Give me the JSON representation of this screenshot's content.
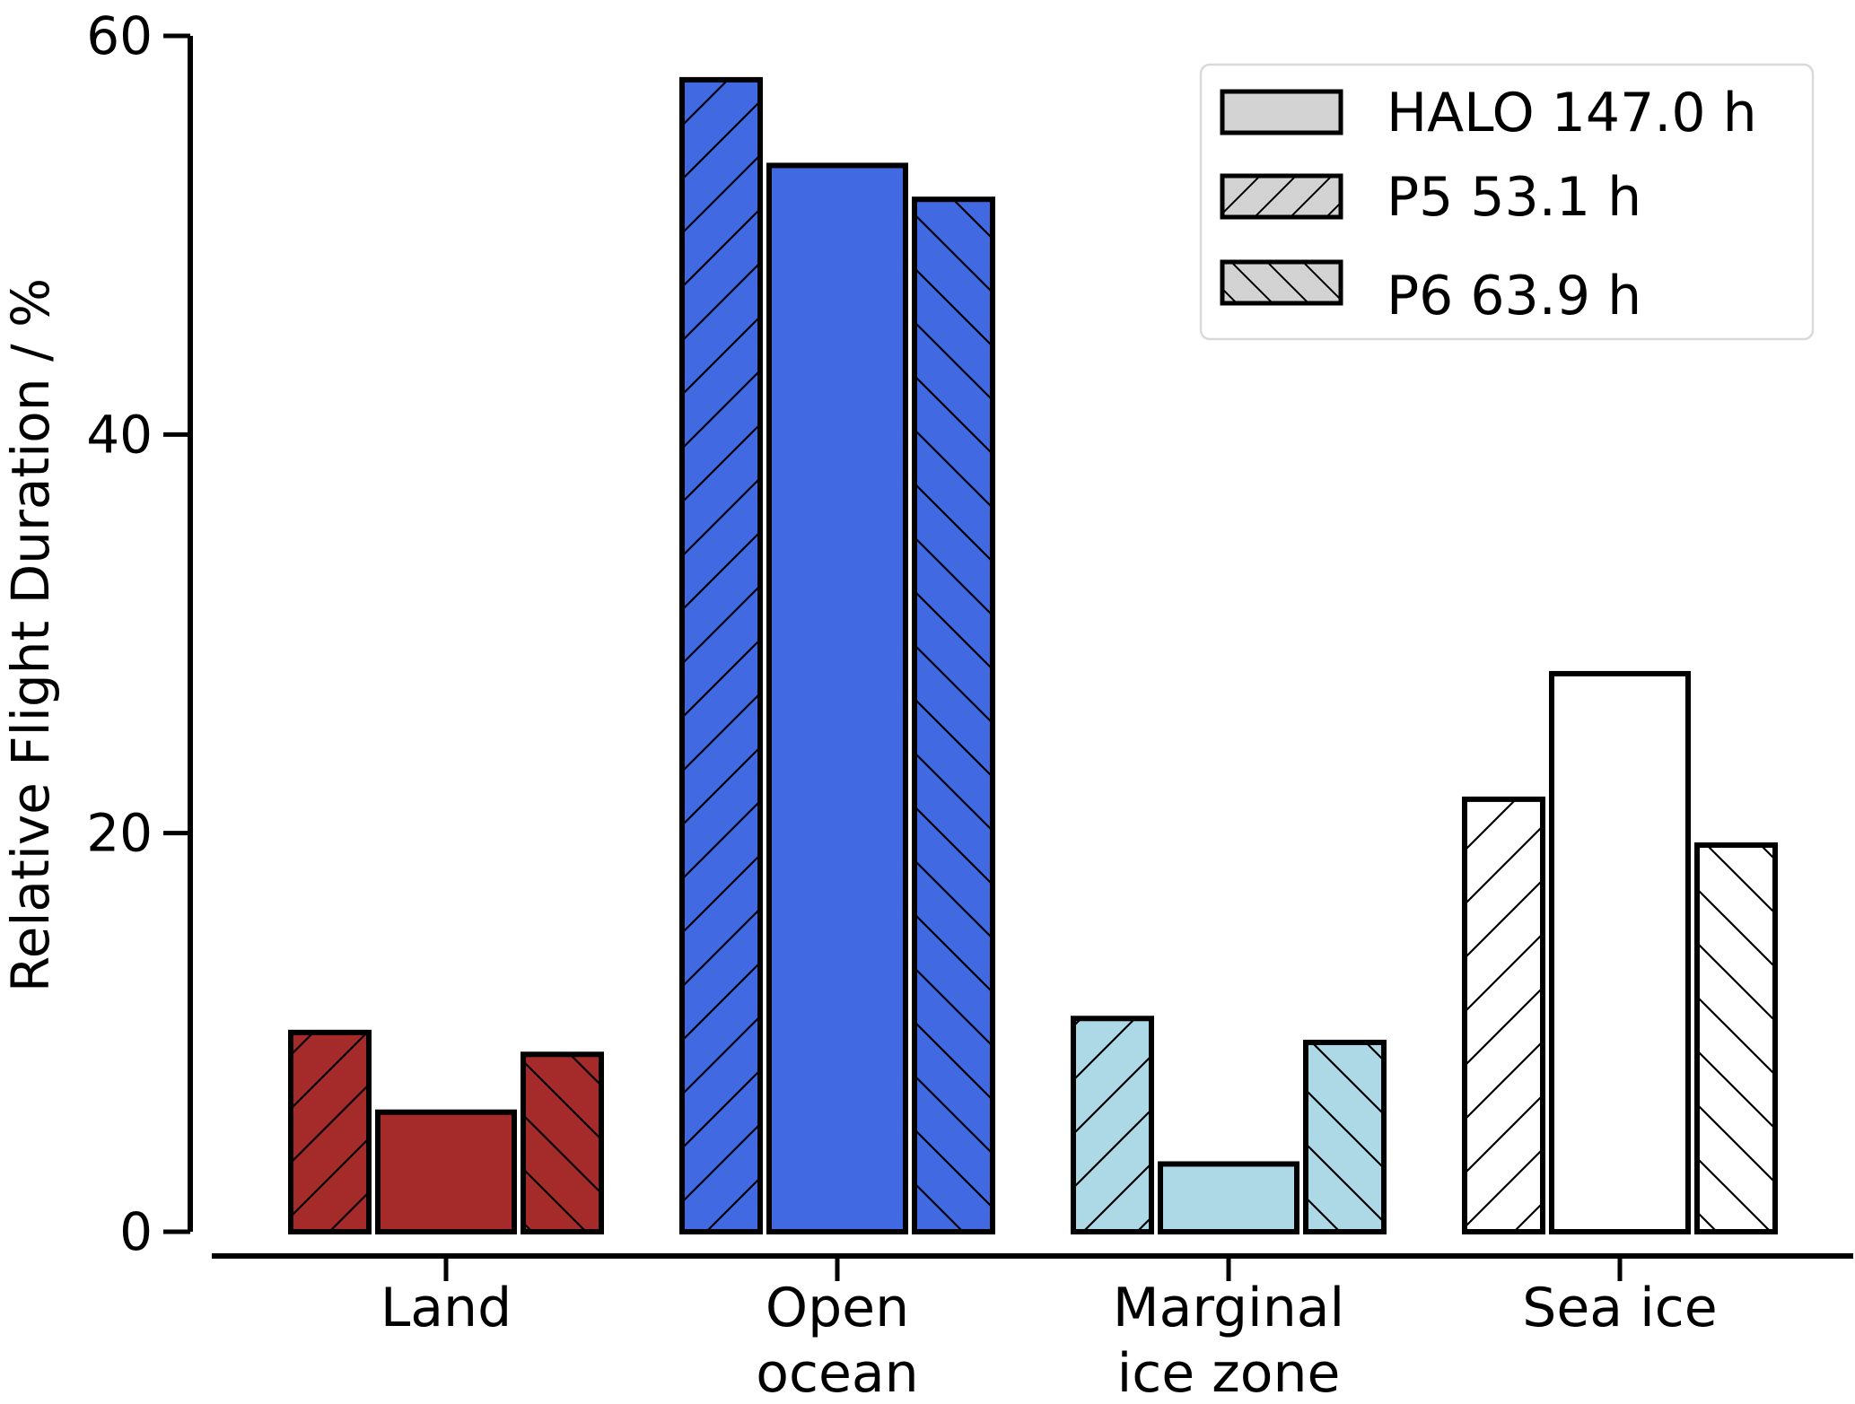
{
  "chart_data": {
    "type": "bar",
    "title": "",
    "xlabel": "",
    "ylabel": "Relative Flight Duration / %",
    "ylim": [
      0,
      60
    ],
    "yticks": [
      0,
      20,
      40,
      60
    ],
    "categories": [
      "Land",
      "Open ocean",
      "Marginal ice zone",
      "Sea ice"
    ],
    "category_lines": [
      [
        "Land"
      ],
      [
        "Open",
        "ocean"
      ],
      [
        "Marginal",
        "ice zone"
      ],
      [
        "Sea ice"
      ]
    ],
    "category_colors": [
      "#a52a2a",
      "#4169e1",
      "#add8e6",
      "#ffffff"
    ],
    "bar_order": [
      "P5",
      "HALO",
      "P6"
    ],
    "series": [
      {
        "name": "HALO 147.0 h",
        "key": "HALO",
        "hatch": "none",
        "values": [
          6.0,
          53.5,
          3.4,
          28.0
        ]
      },
      {
        "name": "P5 53.1 h",
        "key": "P5",
        "hatch": "forward",
        "values": [
          10.0,
          57.8,
          10.7,
          21.7
        ]
      },
      {
        "name": "P6 63.9 h",
        "key": "P6",
        "hatch": "backward",
        "values": [
          8.9,
          51.8,
          9.5,
          19.4
        ]
      }
    ],
    "legend": {
      "position": "top-right",
      "entries": [
        "HALO 147.0 h",
        "P5 53.1 h",
        "P6 63.9 h"
      ],
      "swatch_color": "#d3d3d3"
    },
    "grid": false
  }
}
